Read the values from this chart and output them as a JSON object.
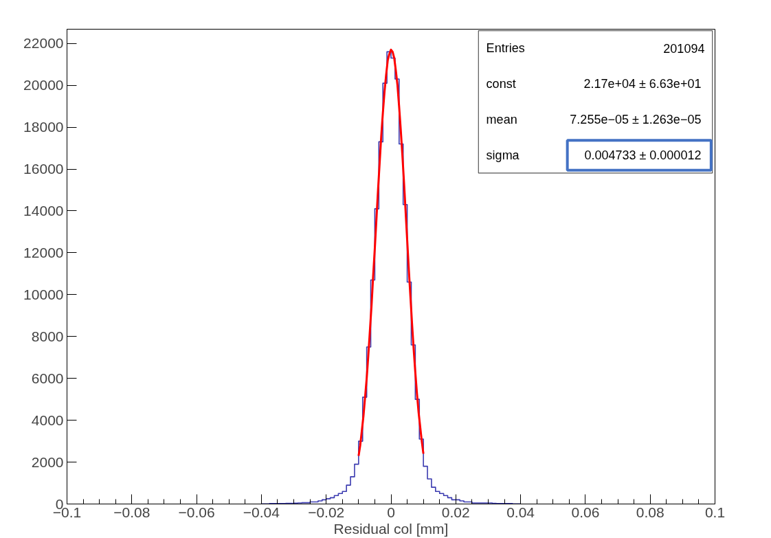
{
  "chart_data": {
    "type": "histogram",
    "xlabel": "Residual col [mm]",
    "xlim": [
      -0.1,
      0.1
    ],
    "ylim": [
      0,
      22680
    ],
    "xticks": [
      {
        "value": -0.1,
        "label": "−0.1"
      },
      {
        "value": -0.08,
        "label": "−0.08"
      },
      {
        "value": -0.06,
        "label": "−0.06"
      },
      {
        "value": -0.04,
        "label": "−0.04"
      },
      {
        "value": -0.02,
        "label": "−0.02"
      },
      0,
      0.02,
      0.04,
      0.06,
      0.08,
      0.1
    ],
    "yticks": [
      0,
      2000,
      4000,
      6000,
      8000,
      10000,
      12000,
      14000,
      16000,
      18000,
      20000,
      22000
    ],
    "grid": false,
    "annotations": [
      "Entries",
      "201094",
      "const",
      "2.17e+04  ± 6.63e+01",
      "mean",
      "7.255e−05  ± 1.263e−05",
      "sigma",
      "0.004733  ± 0.000012"
    ],
    "bins": [
      -0.04,
      -0.03875,
      -0.0375,
      -0.03625,
      -0.035,
      -0.03375,
      -0.0325,
      -0.03125,
      -0.03,
      -0.02875,
      -0.0275,
      -0.02625,
      -0.025,
      -0.02375,
      -0.0225,
      -0.02125,
      -0.02,
      -0.01875,
      -0.0175,
      -0.01625,
      -0.015,
      -0.01375,
      -0.0125,
      -0.01125,
      -0.01,
      -0.00875,
      -0.0075,
      -0.00625,
      -0.005,
      -0.00375,
      -0.0025,
      -0.00125,
      0,
      0.00125,
      0.0025,
      0.00375,
      0.005,
      0.00625,
      0.0075,
      0.00875,
      0.01,
      0.01125,
      0.0125,
      0.01375,
      0.015,
      0.01625,
      0.0175,
      0.01875,
      0.02,
      0.02125,
      0.0225,
      0.02375,
      0.025,
      0.02625,
      0.0275,
      0.02875,
      0.03,
      0.03125,
      0.0325,
      0.03375,
      0.035,
      0.03625,
      0.0375,
      0.03875,
      0.04
    ],
    "series": [
      {
        "color": "#3b3bb0",
        "values": [
          10,
          10,
          20,
          20,
          20,
          20,
          30,
          30,
          40,
          50,
          60,
          60,
          100,
          100,
          150,
          200,
          250,
          300,
          400,
          500,
          600,
          900,
          1300,
          1900,
          3000,
          5100,
          7500,
          10700,
          14100,
          17300,
          20100,
          21600,
          21300,
          20300,
          17200,
          14300,
          10600,
          7600,
          5000,
          3100,
          1800,
          1200,
          800,
          600,
          500,
          400,
          300,
          200,
          200,
          150,
          100,
          100,
          50,
          50,
          50,
          50,
          50,
          30,
          20,
          20,
          20,
          20,
          10,
          10
        ]
      },
      {
        "type": "line",
        "color": "#ff0000",
        "x": [
          -0.01,
          -0.0095,
          -0.009,
          -0.0085,
          -0.008,
          -0.0075,
          -0.007,
          -0.0065,
          -0.006,
          -0.0055,
          -0.005,
          -0.0045,
          -0.004,
          -0.0035,
          -0.003,
          -0.0025,
          -0.002,
          -0.0015,
          -0.001,
          -0.0005,
          0,
          0.0005,
          0.001,
          0.0015,
          0.002,
          0.0025,
          0.003,
          0.0035,
          0.004,
          0.0045,
          0.005,
          0.0055,
          0.006,
          0.0065,
          0.007,
          0.0075,
          0.008,
          0.0085,
          0.009,
          0.0095,
          0.01
        ],
        "values": [
          2300,
          2800,
          3500,
          4200,
          5100,
          6000,
          7100,
          8300,
          9500,
          10900,
          12200,
          13600,
          15000,
          16300,
          17600,
          18700,
          19700,
          20500,
          21200,
          21500,
          21700,
          21600,
          21300,
          20700,
          20000,
          19000,
          17900,
          16700,
          15400,
          14000,
          12600,
          11200,
          9900,
          8600,
          7400,
          6300,
          5300,
          4400,
          3700,
          3000,
          2400
        ]
      }
    ]
  }
}
